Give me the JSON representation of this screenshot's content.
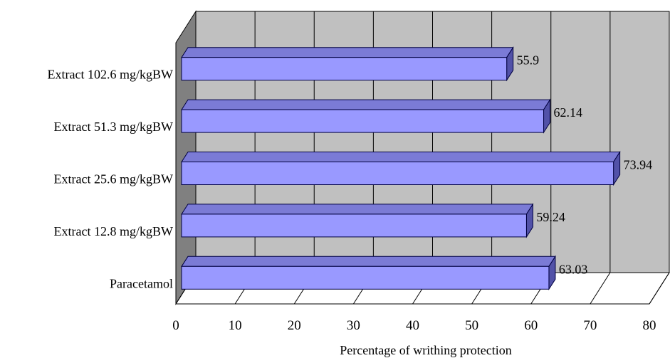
{
  "chart_data": {
    "type": "bar",
    "orientation": "horizontal",
    "style": "3d",
    "categories": [
      "Paracetamol",
      "Extract 12.8 mg/kgBW",
      "Extract 25.6 mg/kgBW",
      "Extract 51.3 mg/kgBW",
      "Extract 102.6 mg/kgBW"
    ],
    "values": [
      63.03,
      59.24,
      73.94,
      62.14,
      55.9
    ],
    "data_labels": [
      "63.03",
      "59.24",
      "73.94",
      "62.14",
      "55.9"
    ],
    "title": "",
    "xlabel": "Percentage of writhing protection",
    "ylabel": "",
    "xlim": [
      0,
      80
    ],
    "xticks": [
      "0",
      "10",
      "20",
      "30",
      "40",
      "50",
      "60",
      "70",
      "80"
    ],
    "grid": true,
    "legend": "none",
    "colors": {
      "bar_front": "#9999ff",
      "bar_top": "#7b7bd6",
      "bar_side": "#5252a8",
      "bar_edge": "#000040",
      "back_wall": "#c0c0c0",
      "side_wall": "#808080",
      "floor": "#ffffff",
      "grid": "#000000"
    }
  }
}
